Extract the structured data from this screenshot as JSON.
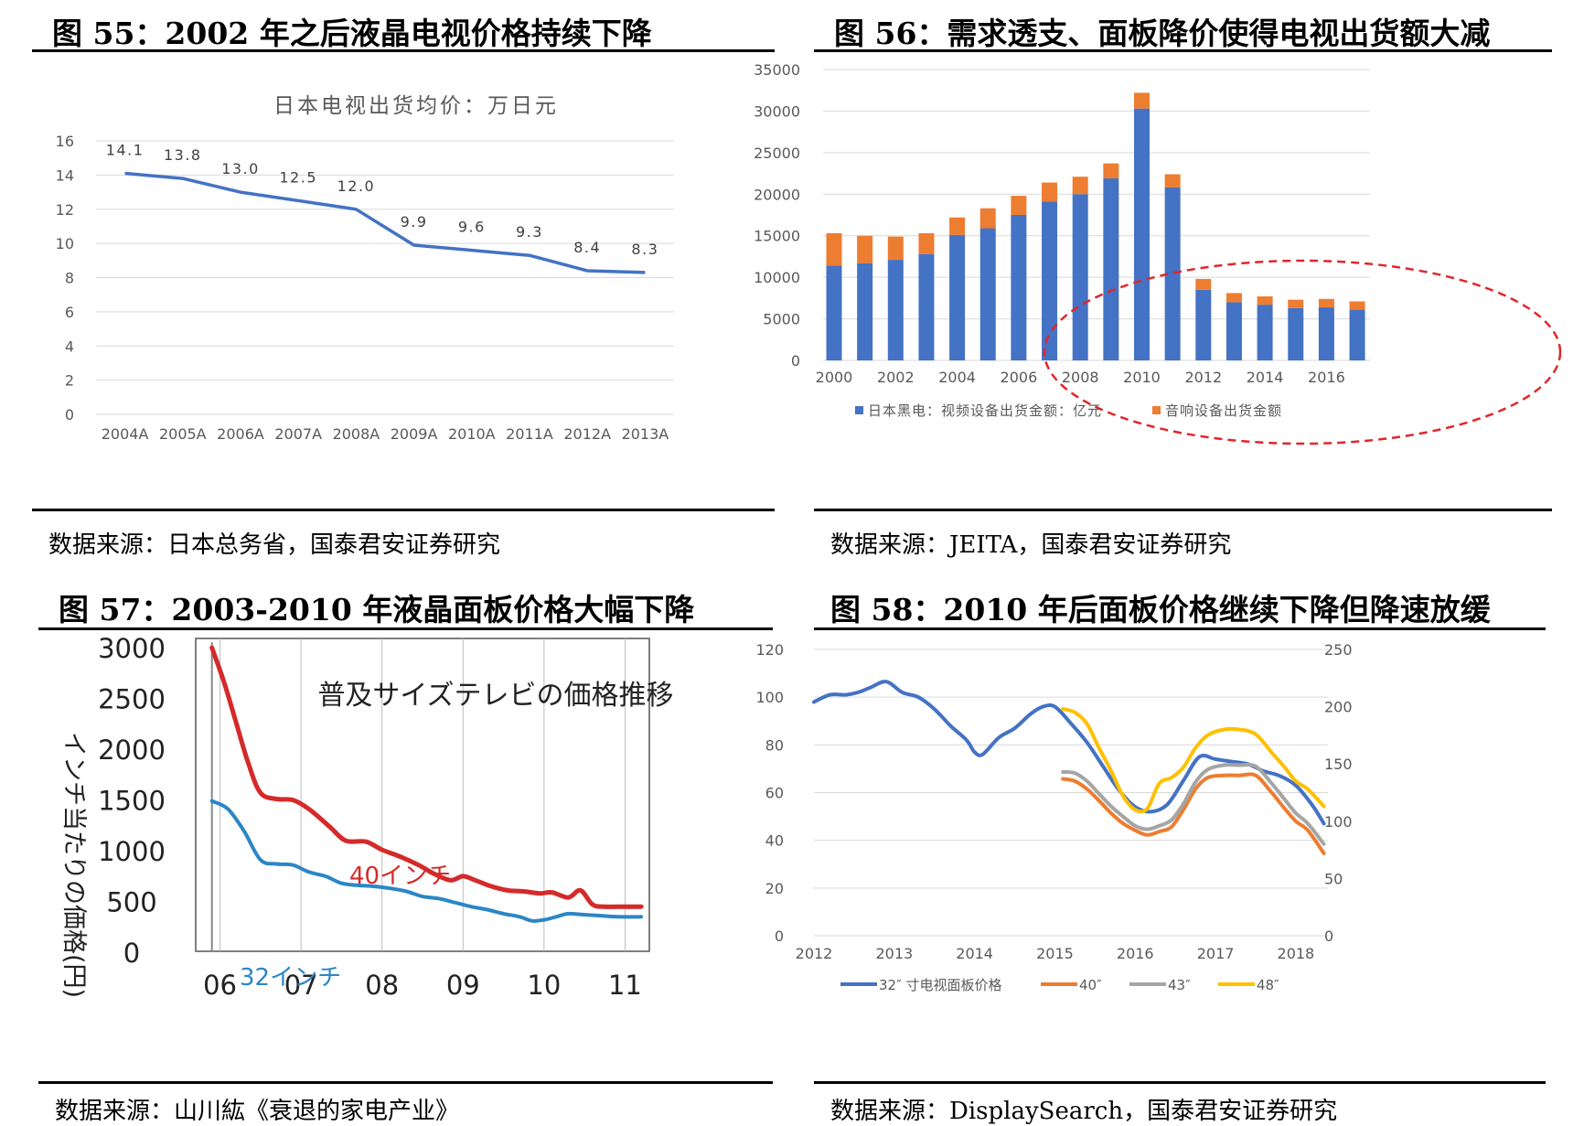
{
  "figures": [
    {
      "title": "图 55：2002 年之后液晶电视价格持续下降",
      "source": "数据来源：日本总务省，国泰君安证券研究"
    },
    {
      "title": "图 56：需求透支、面板降价使得电视出货额大减",
      "source": "数据来源：JEITA，国泰君安证券研究"
    },
    {
      "title": "图 57：2003-2010 年液晶面板价格大幅下降",
      "source": "数据来源：山川紘《衰退的家电产业》"
    },
    {
      "title": "图 58：2010 年后面板价格继续下降但降速放缓",
      "source": "数据来源：DisplaySearch，国泰君安证券研究"
    }
  ],
  "chart_data": [
    {
      "type": "line",
      "title": "日本电视出货均价：万日元",
      "categories": [
        "2004A",
        "2005A",
        "2006A",
        "2007A",
        "2008A",
        "2009A",
        "2010A",
        "2011A",
        "2012A",
        "2013A"
      ],
      "values": [
        14.1,
        13.8,
        13.0,
        12.5,
        12.0,
        9.9,
        9.6,
        9.3,
        8.4,
        8.3
      ],
      "labels": [
        "14.1",
        "13.8",
        "13.0",
        "12.5",
        "12.0",
        "9.9",
        "9.6",
        "9.3",
        "8.4",
        "8.3"
      ],
      "ylim": [
        0,
        16
      ],
      "yticks": [
        "0",
        "2",
        "4",
        "6",
        "8",
        "10",
        "12",
        "14",
        "16"
      ],
      "color": "#4472c4",
      "grid": true
    },
    {
      "type": "bar",
      "stacked": true,
      "years": [
        2000,
        2001,
        2002,
        2003,
        2004,
        2005,
        2006,
        2007,
        2008,
        2009,
        2010,
        2011,
        2012,
        2013,
        2014,
        2015,
        2016,
        2017
      ],
      "xtick_labels": [
        "2000",
        "2002",
        "2004",
        "2006",
        "2008",
        "2010",
        "2012",
        "2014",
        "2016"
      ],
      "ylim": [
        0,
        35000
      ],
      "yticks": [
        "0",
        "5000",
        "10000",
        "15000",
        "20000",
        "25000",
        "30000",
        "35000"
      ],
      "series": [
        {
          "name": "日本黑电：视频设备出货金额：亿元",
          "color": "#4472c4",
          "values": [
            11400,
            11700,
            12100,
            12800,
            15100,
            15900,
            17500,
            19100,
            20000,
            21900,
            30300,
            20800,
            8500,
            7000,
            6700,
            6300,
            6400,
            6100
          ]
        },
        {
          "name": "音响设备出货金额",
          "color": "#ed7d31",
          "values": [
            3900,
            3300,
            2800,
            2500,
            2100,
            2400,
            2300,
            2300,
            2100,
            1800,
            1900,
            1600,
            1300,
            1100,
            1000,
            1000,
            1000,
            1000
          ]
        }
      ],
      "annotation": "red dashed ellipse around 2012-2017",
      "grid": true,
      "legend": "bottom"
    },
    {
      "type": "line",
      "title": "普及サイズテレビの価格推移",
      "ylabel": "インチ当たりの価格(円)",
      "xtick_labels": [
        "06",
        "07",
        "08",
        "09",
        "10",
        "11"
      ],
      "yticks": [
        "0",
        "500",
        "1000",
        "1500",
        "2000",
        "2500",
        "3000"
      ],
      "ylim": [
        0,
        3000
      ],
      "xlim": [
        2005.7,
        2011.3
      ],
      "series": [
        {
          "name": "40インチ",
          "color": "#d42a2a",
          "x": [
            2005.9,
            2006.05,
            2006.2,
            2006.35,
            2006.5,
            2006.7,
            2006.9,
            2007.1,
            2007.35,
            2007.55,
            2007.8,
            2008.0,
            2008.2,
            2008.45,
            2008.65,
            2008.85,
            2009.0,
            2009.15,
            2009.35,
            2009.55,
            2009.75,
            2009.95,
            2010.1,
            2010.3,
            2010.45,
            2010.6,
            2010.75,
            2011.0,
            2011.2
          ],
          "y": [
            2990,
            2650,
            2250,
            1850,
            1560,
            1500,
            1490,
            1400,
            1230,
            1090,
            1080,
            1000,
            940,
            850,
            760,
            700,
            740,
            700,
            640,
            600,
            590,
            570,
            580,
            530,
            600,
            460,
            440,
            440,
            440
          ]
        },
        {
          "name": "32インチ",
          "color": "#2b86c5",
          "x": [
            2005.9,
            2006.1,
            2006.3,
            2006.5,
            2006.7,
            2006.9,
            2007.1,
            2007.3,
            2007.5,
            2007.7,
            2007.9,
            2008.1,
            2008.3,
            2008.5,
            2008.7,
            2008.9,
            2009.1,
            2009.3,
            2009.5,
            2009.7,
            2009.85,
            2010.0,
            2010.15,
            2010.3,
            2010.5,
            2010.7,
            2010.9,
            2011.2
          ],
          "y": [
            1480,
            1400,
            1180,
            900,
            860,
            850,
            780,
            740,
            670,
            650,
            640,
            620,
            590,
            540,
            520,
            480,
            440,
            410,
            370,
            340,
            300,
            310,
            340,
            370,
            360,
            350,
            340,
            340
          ]
        }
      ],
      "labels": [
        {
          "text": "40インチ"
        },
        {
          "text": "32インチ"
        }
      ]
    },
    {
      "type": "line",
      "x_ticks": [
        "2012",
        "2013",
        "2014",
        "2015",
        "2016",
        "2017",
        "2018"
      ],
      "xlim": [
        2012.0,
        2018.4
      ],
      "ylim_left": [
        0,
        120
      ],
      "ylim_right": [
        0,
        250
      ],
      "yticks_left": [
        "0",
        "20",
        "40",
        "60",
        "80",
        "100",
        "120"
      ],
      "yticks_right": [
        "0",
        "50",
        "100",
        "150",
        "200",
        "250"
      ],
      "series": [
        {
          "name": "32″ 寸电视面板价格",
          "color": "#4472c4",
          "axis": "left",
          "x": [
            2012.0,
            2012.2,
            2012.4,
            2012.55,
            2012.7,
            2012.9,
            2013.1,
            2013.3,
            2013.5,
            2013.7,
            2013.9,
            2014.0,
            2014.1,
            2014.3,
            2014.5,
            2014.7,
            2014.85,
            2015.0,
            2015.2,
            2015.4,
            2015.6,
            2015.8,
            2016.0,
            2016.2,
            2016.4,
            2016.6,
            2016.8,
            2017.0,
            2017.2,
            2017.4,
            2017.6,
            2017.8,
            2018.0,
            2018.2,
            2018.35
          ],
          "y": [
            98,
            101,
            101,
            102,
            104,
            106.5,
            102,
            100,
            95,
            88,
            82,
            77,
            76,
            83,
            87,
            93,
            96,
            96,
            89,
            81,
            71,
            61,
            54,
            52,
            55,
            65,
            75,
            74,
            73,
            72,
            69,
            67,
            63,
            55,
            47
          ]
        },
        {
          "name": "40″",
          "color": "#ed7d31",
          "axis": "right",
          "x": [
            2015.1,
            2015.25,
            2015.4,
            2015.55,
            2015.7,
            2015.85,
            2016.0,
            2016.15,
            2016.3,
            2016.45,
            2016.6,
            2016.75,
            2016.9,
            2017.1,
            2017.3,
            2017.5,
            2017.7,
            2017.85,
            2018.0,
            2018.15,
            2018.35
          ],
          "y": [
            137,
            135,
            128,
            118,
            107,
            98,
            92,
            88,
            91,
            95,
            110,
            128,
            138,
            140,
            140,
            140,
            125,
            112,
            100,
            92,
            72
          ]
        },
        {
          "name": "43″",
          "color": "#a5a5a5",
          "axis": "right",
          "x": [
            2015.1,
            2015.25,
            2015.4,
            2015.55,
            2015.7,
            2015.85,
            2016.0,
            2016.15,
            2016.3,
            2016.45,
            2016.6,
            2016.75,
            2016.9,
            2017.1,
            2017.3,
            2017.5,
            2017.7,
            2017.85,
            2018.0,
            2018.15,
            2018.35
          ],
          "y": [
            143,
            142,
            135,
            124,
            113,
            104,
            96,
            93,
            96,
            101,
            115,
            134,
            145,
            149,
            149,
            148,
            133,
            120,
            107,
            98,
            80
          ]
        },
        {
          "name": "48″",
          "color": "#ffc000",
          "axis": "right",
          "x": [
            2015.1,
            2015.25,
            2015.4,
            2015.55,
            2015.7,
            2015.85,
            2016.0,
            2016.15,
            2016.3,
            2016.45,
            2016.6,
            2016.75,
            2016.9,
            2017.1,
            2017.3,
            2017.5,
            2017.7,
            2017.85,
            2018.0,
            2018.15,
            2018.35
          ],
          "y": [
            198,
            195,
            185,
            164,
            144,
            122,
            110,
            111,
            133,
            138,
            147,
            164,
            175,
            180,
            180,
            176,
            160,
            148,
            135,
            128,
            113
          ]
        }
      ],
      "legend": "bottom"
    }
  ]
}
